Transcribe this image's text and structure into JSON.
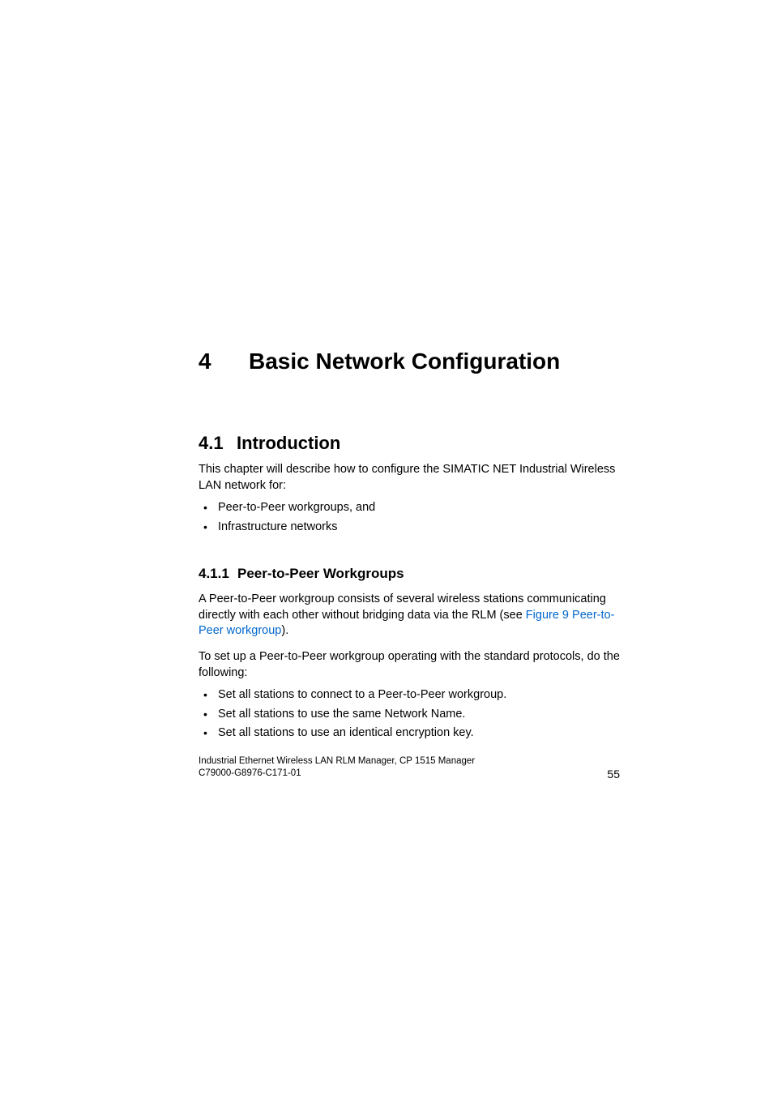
{
  "chapter": {
    "number": "4",
    "title": "Basic Network Configuration"
  },
  "section": {
    "number": "4.1",
    "title": "Introduction",
    "intro_text": "This chapter will describe how to configure the SIMATIC NET Industrial Wireless LAN network for:",
    "bullets": [
      "Peer-to-Peer workgroups, and",
      "Infrastructure networks"
    ]
  },
  "subsection": {
    "number": "4.1.1",
    "title": "Peer-to-Peer Workgroups",
    "para1_prefix": "A Peer-to-Peer workgroup consists of several wireless stations communicating directly with each other without bridging data via the RLM (see ",
    "para1_link": "Figure 9 Peer-to-Peer workgroup",
    "para1_suffix": ").",
    "para2": "To set up a Peer-to-Peer workgroup operating with the standard protocols, do the following:",
    "bullets": [
      "Set all stations to connect to a Peer-to-Peer workgroup.",
      "Set all stations to use the same Network Name.",
      "Set all stations to use an identical encryption key."
    ]
  },
  "footer": {
    "line1": "Industrial Ethernet Wireless LAN  RLM Manager,  CP 1515 Manager",
    "line2": "C79000-G8976-C171-01",
    "page_number": "55"
  },
  "colors": {
    "text": "#000000",
    "link": "#0066cc",
    "background": "#ffffff"
  },
  "typography": {
    "chapter_fontsize": 28,
    "section_fontsize": 22,
    "subsection_fontsize": 17,
    "body_fontsize": 14.5,
    "footer_fontsize": 11.5
  }
}
